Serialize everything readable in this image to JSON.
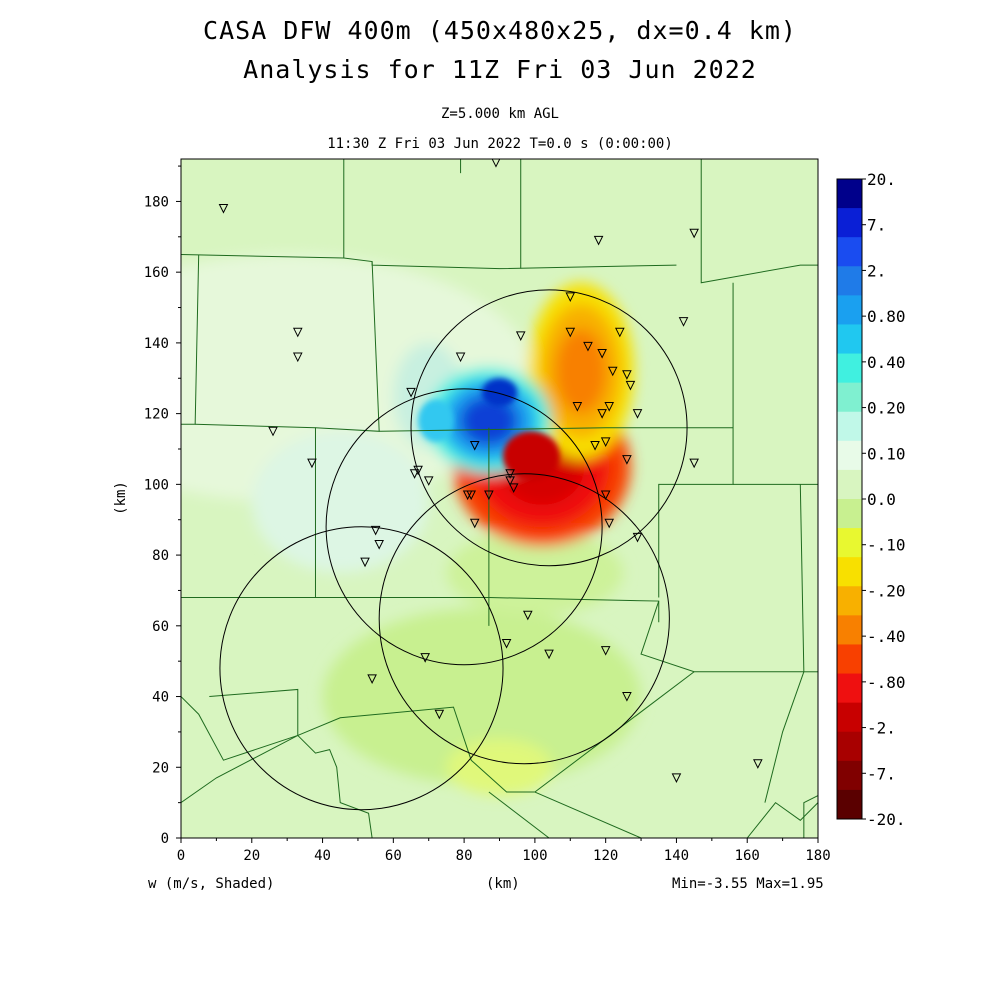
{
  "title": "CASA DFW 400m (450x480x25, dx=0.4 km)",
  "subtitle": "Analysis for 11Z Fri 03 Jun 2022",
  "level_label": "Z=5.000 km AGL",
  "time_label": "11:30 Z Fri 03 Jun 2022    T=0.0 s (0:00:00)",
  "x_axis": {
    "label": "(km)",
    "ticks": [
      "0",
      "20",
      "40",
      "60",
      "80",
      "100",
      "120",
      "140",
      "160",
      "180"
    ]
  },
  "y_axis": {
    "label": "(km)",
    "ticks": [
      "0",
      "20",
      "40",
      "60",
      "80",
      "100",
      "120",
      "140",
      "160",
      "180"
    ]
  },
  "field_label": "w (m/s, Shaded)",
  "min_max": "Min=-3.55 Max=1.95",
  "colorbar": {
    "labels": [
      "20.",
      "7.",
      "2.",
      "0.80",
      "0.40",
      "0.20",
      "0.10",
      "0.0",
      "-.10",
      "-.20",
      "-.40",
      "-.80",
      "-2.",
      "-7.",
      "-20."
    ],
    "colors": [
      "#00008b",
      "#0a1fd6",
      "#1a4cf0",
      "#1f7be8",
      "#1aa0f0",
      "#20c8f0",
      "#40f0e0",
      "#7ff0d0",
      "#c0f8e8",
      "#e8fbe8",
      "#d8f5c0",
      "#c8f090",
      "#e8f830",
      "#f8e000",
      "#f8b000",
      "#f88000",
      "#f84000",
      "#ef1010",
      "#c80000",
      "#a80000",
      "#800000",
      "#5a0000"
    ]
  },
  "chart_data": {
    "type": "heatmap",
    "variable": "w (m/s, Shaded)",
    "x_range_km": [
      0,
      180
    ],
    "y_range_km": [
      0,
      192
    ],
    "min": -3.55,
    "max": 1.95,
    "radar_rings_km": [
      {
        "cx": 104,
        "cy": 116,
        "r": 39
      },
      {
        "cx": 80,
        "cy": 88,
        "r": 39
      },
      {
        "cx": 97,
        "cy": 62,
        "r": 41
      },
      {
        "cx": 51,
        "cy": 48,
        "r": 40
      }
    ],
    "features": [
      {
        "kind": "updraft",
        "cx": 102,
        "cy": 105,
        "rx": 20,
        "ry": 18,
        "level": -2.0
      },
      {
        "kind": "updraft",
        "cx": 113,
        "cy": 132,
        "rx": 12,
        "ry": 20,
        "level": -0.4
      },
      {
        "kind": "downdraft",
        "cx": 87,
        "cy": 118,
        "rx": 14,
        "ry": 12,
        "level": 0.8
      }
    ],
    "stations_km": [
      [
        12,
        178
      ],
      [
        89,
        191
      ],
      [
        118,
        169
      ],
      [
        145,
        171
      ],
      [
        110,
        153
      ],
      [
        142,
        146
      ],
      [
        33,
        143
      ],
      [
        33,
        136
      ],
      [
        96,
        142
      ],
      [
        110,
        143
      ],
      [
        115,
        139
      ],
      [
        124,
        143
      ],
      [
        119,
        137
      ],
      [
        79,
        136
      ],
      [
        122,
        132
      ],
      [
        126,
        131
      ],
      [
        127,
        128
      ],
      [
        65,
        126
      ],
      [
        112,
        122
      ],
      [
        121,
        122
      ],
      [
        119,
        120
      ],
      [
        129,
        120
      ],
      [
        26,
        115
      ],
      [
        83,
        111
      ],
      [
        117,
        111
      ],
      [
        120,
        112
      ],
      [
        37,
        106
      ],
      [
        126,
        107
      ],
      [
        145,
        106
      ],
      [
        67,
        104
      ],
      [
        66,
        103
      ],
      [
        93,
        103
      ],
      [
        70,
        101
      ],
      [
        93,
        101
      ],
      [
        94,
        99
      ],
      [
        81,
        97
      ],
      [
        82,
        97
      ],
      [
        87,
        97
      ],
      [
        120,
        97
      ],
      [
        83,
        89
      ],
      [
        121,
        89
      ],
      [
        129,
        85
      ],
      [
        55,
        87
      ],
      [
        56,
        83
      ],
      [
        52,
        78
      ],
      [
        98,
        63
      ],
      [
        69,
        51
      ],
      [
        92,
        55
      ],
      [
        104,
        52
      ],
      [
        120,
        53
      ],
      [
        54,
        45
      ],
      [
        73,
        35
      ],
      [
        126,
        40
      ],
      [
        140,
        17
      ],
      [
        163,
        21
      ]
    ]
  }
}
